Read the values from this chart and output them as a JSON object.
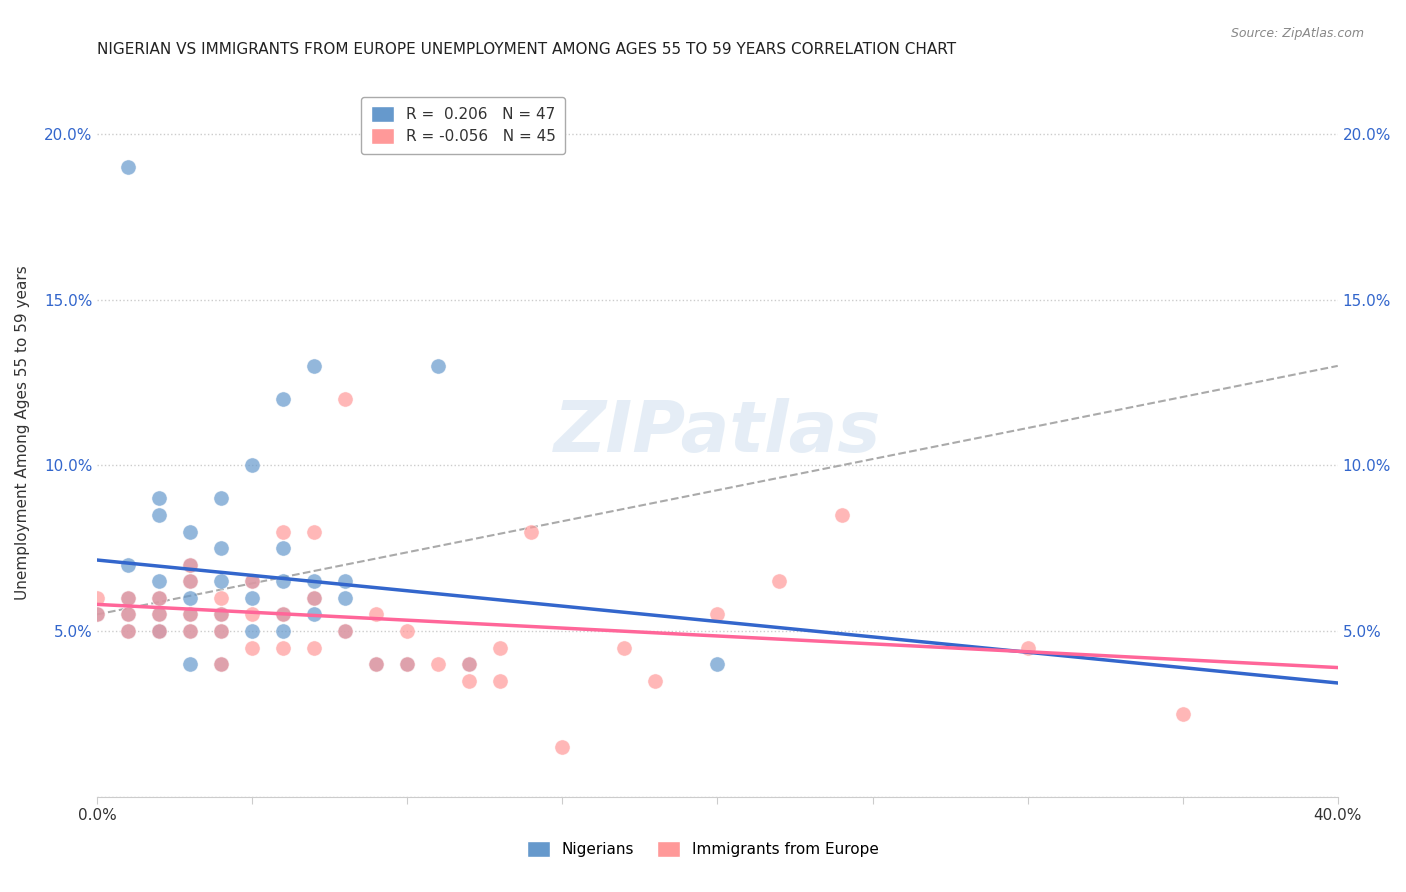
{
  "title": "NIGERIAN VS IMMIGRANTS FROM EUROPE UNEMPLOYMENT AMONG AGES 55 TO 59 YEARS CORRELATION CHART",
  "source": "Source: ZipAtlas.com",
  "xlabel": "",
  "ylabel": "Unemployment Among Ages 55 to 59 years",
  "xlim": [
    0.0,
    0.4
  ],
  "ylim": [
    0.0,
    0.22
  ],
  "xticks": [
    0.0,
    0.05,
    0.1,
    0.15,
    0.2,
    0.25,
    0.3,
    0.35,
    0.4
  ],
  "yticks": [
    0.0,
    0.05,
    0.1,
    0.15,
    0.2
  ],
  "xtick_labels": [
    "0.0%",
    "",
    "",
    "",
    "",
    "",
    "",
    "",
    "40.0%"
  ],
  "ytick_labels_left": [
    "",
    "5.0%",
    "10.0%",
    "15.0%",
    "20.0%"
  ],
  "ytick_labels_right": [
    "",
    "5.0%",
    "10.0%",
    "15.0%",
    "20.0%"
  ],
  "r_nigerian": 0.206,
  "n_nigerian": 47,
  "r_europe": -0.056,
  "n_europe": 45,
  "watermark": "ZIPatlas",
  "blue_color": "#6699CC",
  "pink_color": "#FF9999",
  "blue_line_color": "#3366CC",
  "pink_line_color": "#FF6699",
  "blue_dashed_color": "#AAAAAA",
  "nigerian_x": [
    0.0,
    0.01,
    0.01,
    0.01,
    0.01,
    0.01,
    0.02,
    0.02,
    0.02,
    0.02,
    0.02,
    0.02,
    0.02,
    0.03,
    0.03,
    0.03,
    0.03,
    0.03,
    0.03,
    0.03,
    0.04,
    0.04,
    0.04,
    0.04,
    0.04,
    0.04,
    0.05,
    0.05,
    0.05,
    0.05,
    0.06,
    0.06,
    0.06,
    0.06,
    0.06,
    0.07,
    0.07,
    0.07,
    0.07,
    0.08,
    0.08,
    0.08,
    0.09,
    0.1,
    0.11,
    0.12,
    0.2
  ],
  "nigerian_y": [
    0.055,
    0.05,
    0.055,
    0.06,
    0.07,
    0.19,
    0.05,
    0.05,
    0.055,
    0.06,
    0.065,
    0.085,
    0.09,
    0.04,
    0.05,
    0.055,
    0.06,
    0.065,
    0.07,
    0.08,
    0.04,
    0.05,
    0.055,
    0.065,
    0.075,
    0.09,
    0.05,
    0.06,
    0.065,
    0.1,
    0.05,
    0.055,
    0.065,
    0.075,
    0.12,
    0.055,
    0.06,
    0.065,
    0.13,
    0.05,
    0.06,
    0.065,
    0.04,
    0.04,
    0.13,
    0.04,
    0.04
  ],
  "europe_x": [
    0.0,
    0.0,
    0.01,
    0.01,
    0.01,
    0.02,
    0.02,
    0.02,
    0.03,
    0.03,
    0.03,
    0.03,
    0.04,
    0.04,
    0.04,
    0.04,
    0.05,
    0.05,
    0.05,
    0.06,
    0.06,
    0.06,
    0.07,
    0.07,
    0.07,
    0.08,
    0.08,
    0.09,
    0.09,
    0.1,
    0.1,
    0.11,
    0.12,
    0.12,
    0.13,
    0.13,
    0.14,
    0.15,
    0.17,
    0.18,
    0.2,
    0.22,
    0.24,
    0.3,
    0.35
  ],
  "europe_y": [
    0.055,
    0.06,
    0.05,
    0.055,
    0.06,
    0.05,
    0.055,
    0.06,
    0.05,
    0.055,
    0.065,
    0.07,
    0.04,
    0.05,
    0.055,
    0.06,
    0.045,
    0.055,
    0.065,
    0.045,
    0.055,
    0.08,
    0.045,
    0.06,
    0.08,
    0.05,
    0.12,
    0.04,
    0.055,
    0.04,
    0.05,
    0.04,
    0.035,
    0.04,
    0.035,
    0.045,
    0.08,
    0.015,
    0.045,
    0.035,
    0.055,
    0.065,
    0.085,
    0.045,
    0.025
  ]
}
